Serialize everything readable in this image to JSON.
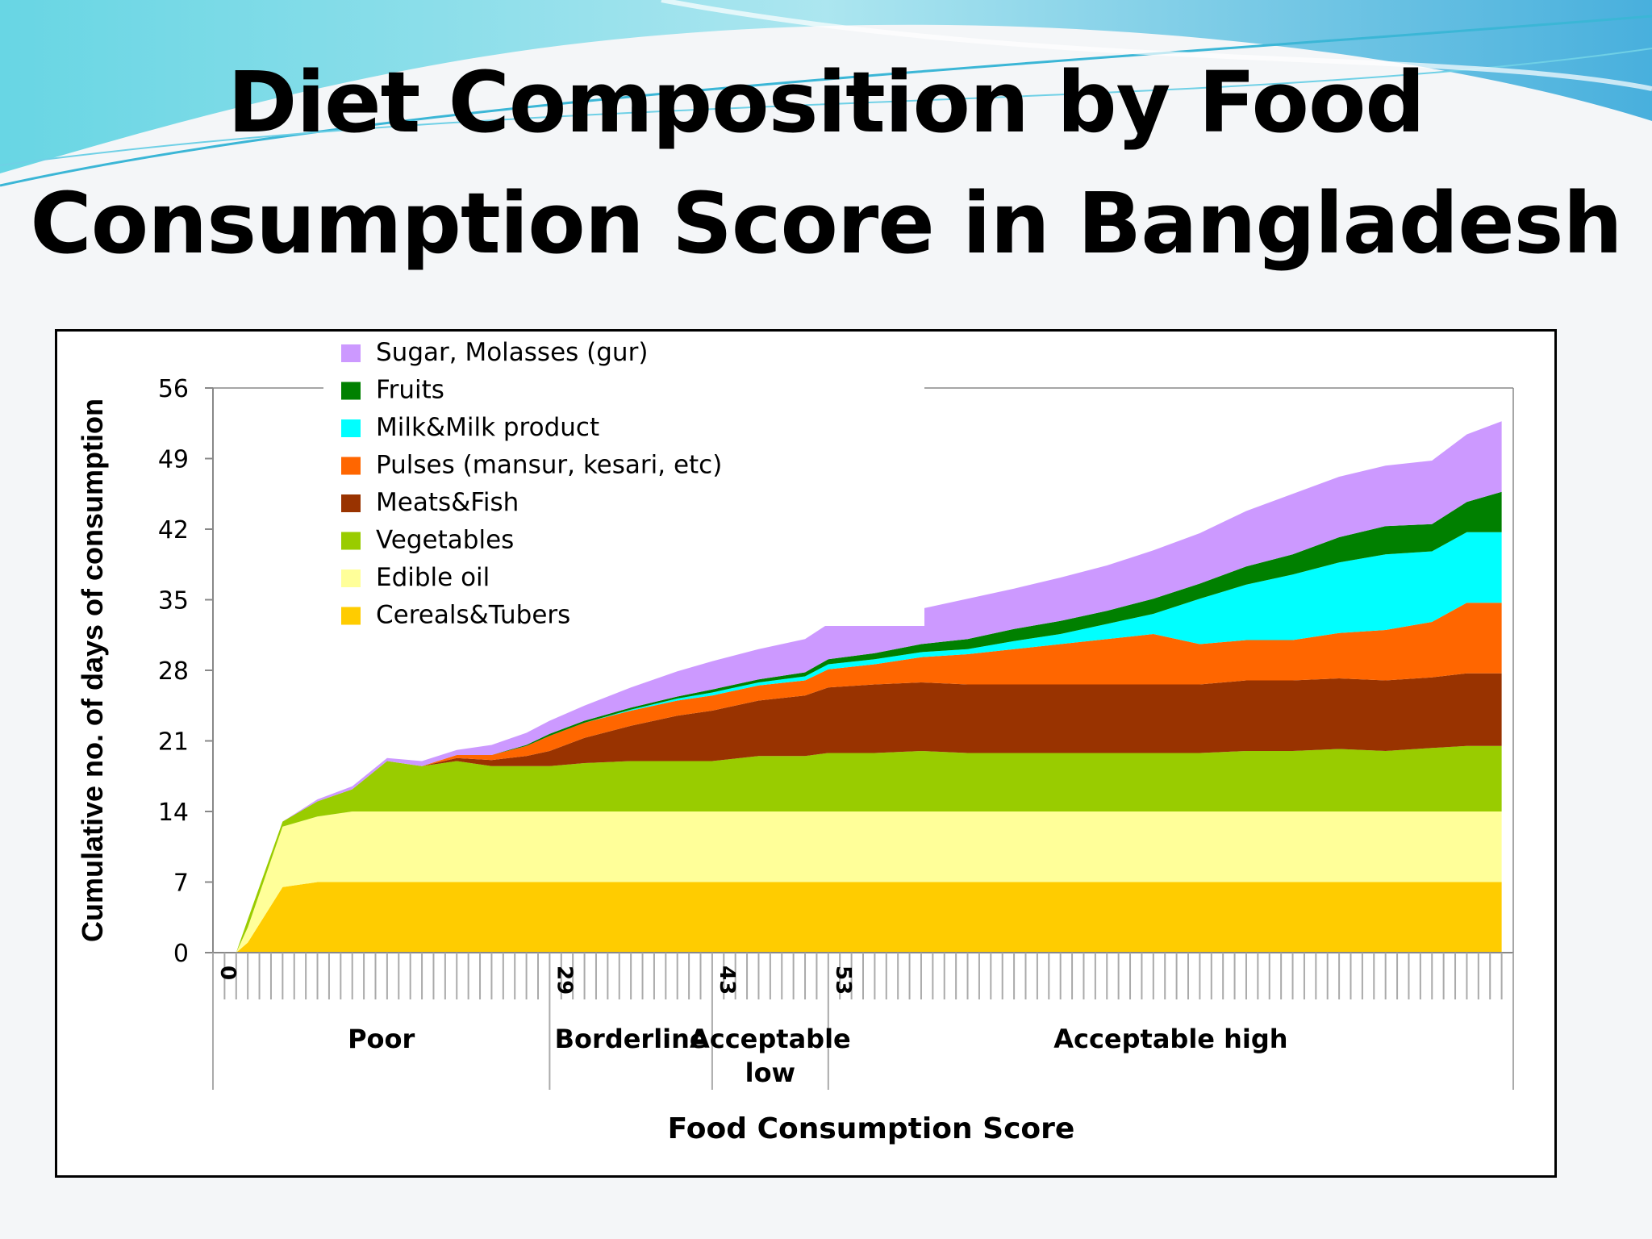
{
  "slide": {
    "title_line1": "Diet Composition by Food",
    "title_line2": "Consumption Score in Bangladesh"
  },
  "chart_data": {
    "type": "area",
    "stacked": true,
    "title": "",
    "xlabel": "Food Consumption Score",
    "ylabel": "Cumulative no. of days of consumption",
    "ylim": [
      0,
      56
    ],
    "yticks": [
      0,
      7,
      14,
      21,
      28,
      35,
      42,
      49,
      56
    ],
    "xlim": [
      0,
      112
    ],
    "xtick_labels": [
      {
        "x": 0,
        "label": "0"
      },
      {
        "x": 29,
        "label": "29"
      },
      {
        "x": 43,
        "label": "43"
      },
      {
        "x": 53,
        "label": "53"
      }
    ],
    "category_bands": [
      {
        "label": "Poor",
        "from": 0,
        "to": 29
      },
      {
        "label": "Borderline",
        "from": 29,
        "to": 43
      },
      {
        "label": "Acceptable low",
        "from": 43,
        "to": 53
      },
      {
        "label": "Acceptable high",
        "from": 53,
        "to": 112
      }
    ],
    "legend_position": "top-left",
    "legend": [
      "Sugar, Molasses (gur)",
      "Fruits",
      "Milk&Milk product",
      "Pulses (mansur, kesari, etc)",
      "Meats&Fish",
      "Vegetables",
      "Edible oil",
      "Cereals&Tubers"
    ],
    "x": [
      2,
      3,
      6,
      9,
      12,
      15,
      18,
      21,
      24,
      27,
      29,
      32,
      36,
      40,
      43,
      47,
      51,
      53,
      57,
      61,
      65,
      69,
      73,
      77,
      81,
      85,
      89,
      93,
      97,
      101,
      105,
      108,
      111
    ],
    "series": [
      {
        "name": "Cereals&Tubers",
        "color": "#ffcc00",
        "values": [
          0,
          1,
          6.5,
          7,
          7,
          7,
          7,
          7,
          7,
          7,
          7,
          7,
          7,
          7,
          7,
          7,
          7,
          7,
          7,
          7,
          7,
          7,
          7,
          7,
          7,
          7,
          7,
          7,
          7,
          7,
          7,
          7,
          7
        ]
      },
      {
        "name": "Edible oil",
        "color": "#ffff99",
        "values": [
          0,
          1.5,
          6,
          6.5,
          7,
          7,
          7,
          7,
          7,
          7,
          7,
          7,
          7,
          7,
          7,
          7,
          7,
          7,
          7,
          7,
          7,
          7,
          7,
          7,
          7,
          7,
          7,
          7,
          7,
          7,
          7,
          7,
          7
        ]
      },
      {
        "name": "Vegetables",
        "color": "#99cc00",
        "values": [
          0,
          0.8,
          0.5,
          1.5,
          2.2,
          5,
          4.5,
          5,
          4.5,
          4.5,
          4.5,
          4.8,
          5,
          5,
          5,
          5.5,
          5.5,
          5.8,
          5.8,
          6,
          5.8,
          5.8,
          5.8,
          5.8,
          5.8,
          5.8,
          6,
          6,
          6.2,
          6,
          6.3,
          6.5,
          6.5
        ]
      },
      {
        "name": "Meats&Fish",
        "color": "#993300",
        "values": [
          0,
          0,
          0,
          0,
          0,
          0,
          0,
          0.3,
          0.6,
          1,
          1.5,
          2.5,
          3.5,
          4.5,
          5,
          5.5,
          6,
          6.5,
          6.8,
          6.8,
          6.8,
          6.8,
          6.8,
          6.8,
          6.8,
          6.8,
          7,
          7,
          7,
          7,
          7,
          7.2,
          7.2
        ]
      },
      {
        "name": "Pulses (mansur, kesari, etc)",
        "color": "#ff6600",
        "values": [
          0,
          0,
          0,
          0,
          0,
          0,
          0,
          0.3,
          0.5,
          1,
          1.5,
          1.5,
          1.5,
          1.5,
          1.5,
          1.5,
          1.5,
          1.8,
          2,
          2.5,
          3,
          3.5,
          4,
          4.5,
          5,
          4,
          4,
          4,
          4.5,
          5,
          5.5,
          7,
          7
        ]
      },
      {
        "name": "Milk&Milk product",
        "color": "#00ffff",
        "values": [
          0,
          0,
          0,
          0,
          0,
          0,
          0,
          0,
          0,
          0,
          0,
          0,
          0.1,
          0.2,
          0.3,
          0.3,
          0.4,
          0.5,
          0.5,
          0.5,
          0.5,
          0.8,
          1,
          1.5,
          2,
          4.5,
          5.5,
          6.5,
          7,
          7.5,
          7,
          7,
          7
        ]
      },
      {
        "name": "Fruits",
        "color": "#008000",
        "values": [
          0,
          0,
          0,
          0,
          0,
          0,
          0,
          0,
          0,
          0.1,
          0.2,
          0.2,
          0.2,
          0.2,
          0.3,
          0.3,
          0.4,
          0.5,
          0.6,
          0.8,
          1,
          1.2,
          1.3,
          1.3,
          1.5,
          1.5,
          1.8,
          2,
          2.5,
          2.8,
          2.7,
          3,
          4
        ]
      },
      {
        "name": "Sugar, Molasses (gur)",
        "color": "#cc99ff",
        "values": [
          0,
          0,
          0,
          0.2,
          0.3,
          0.3,
          0.5,
          0.5,
          1,
          1.2,
          1.3,
          1.5,
          2,
          2.5,
          2.8,
          3,
          3.3,
          3.5,
          3.5,
          3.5,
          4,
          4,
          4.3,
          4.5,
          4.8,
          5,
          5.5,
          6,
          6,
          6,
          6.3,
          6.7,
          7
        ]
      }
    ]
  }
}
